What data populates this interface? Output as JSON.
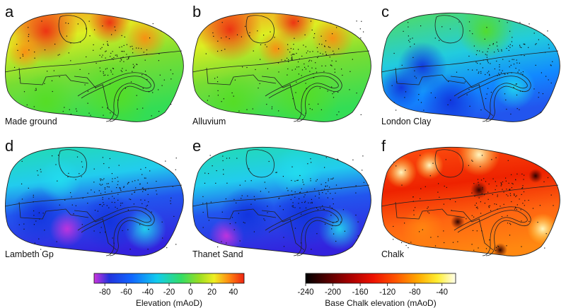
{
  "panels": [
    {
      "letter": "a",
      "caption": "Made ground",
      "scale": "elevation"
    },
    {
      "letter": "b",
      "caption": "Alluvium",
      "scale": "elevation"
    },
    {
      "letter": "c",
      "caption": "London Clay",
      "scale": "elevation"
    },
    {
      "letter": "d",
      "caption": "Lambeth Gp",
      "scale": "elevation"
    },
    {
      "letter": "e",
      "caption": "Thanet Sand",
      "scale": "elevation"
    },
    {
      "letter": "f",
      "caption": "Chalk",
      "scale": "chalk"
    }
  ],
  "legends": {
    "elevation": {
      "title": "Elevation (mAoD)",
      "min": -90,
      "max": 50,
      "ticks": [
        "-80",
        "-60",
        "-40",
        "-20",
        "0",
        "20",
        "40"
      ],
      "tick_values": [
        -80,
        -60,
        -40,
        -20,
        0,
        20,
        40
      ],
      "colors": [
        "#cc33dd",
        "#2233dd",
        "#1166ff",
        "#11ccee",
        "#33dd66",
        "#99dd22",
        "#eeee22",
        "#ff8811",
        "#ee2211"
      ]
    },
    "chalk": {
      "title": "Base Chalk elevation (mAoD)",
      "min": -240,
      "max": -20,
      "ticks": [
        "-240",
        "-200",
        "-160",
        "-120",
        "-80",
        "-40"
      ],
      "tick_values": [
        -240,
        -200,
        -160,
        -120,
        -80,
        -40
      ],
      "colors": [
        "#000000",
        "#550000",
        "#aa0000",
        "#ee1100",
        "#ff5500",
        "#ffaa00",
        "#ffee33",
        "#ffffee"
      ]
    }
  }
}
